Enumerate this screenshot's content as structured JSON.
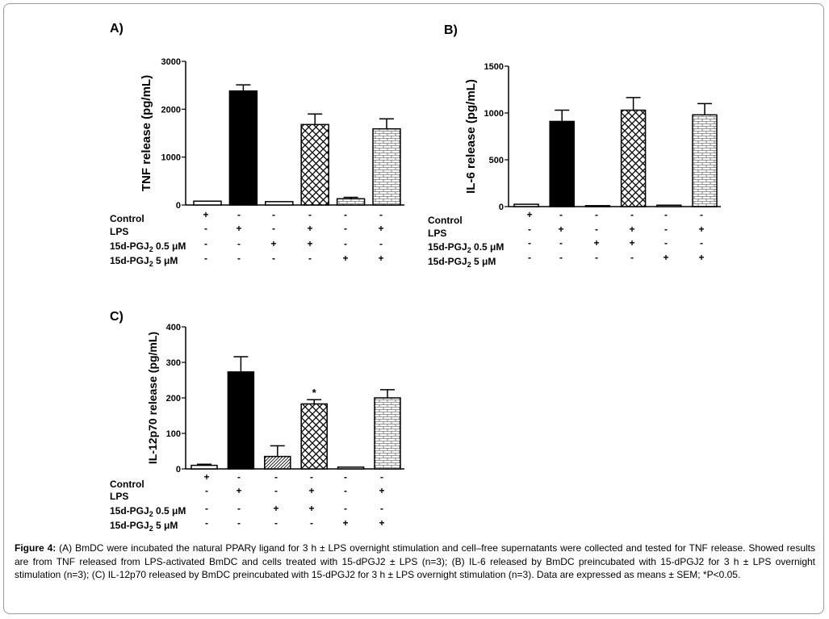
{
  "chart_data": [
    {
      "type": "bar",
      "panel_label": "A)",
      "ylabel": "TNF release (pg/mL)",
      "ylim": [
        0,
        3000
      ],
      "yticks": [
        0,
        1000,
        2000,
        3000
      ],
      "categories": [
        "1",
        "2",
        "3",
        "4",
        "5",
        "6"
      ],
      "values": [
        80,
        2380,
        70,
        1680,
        130,
        1590
      ],
      "errors": [
        0,
        130,
        0,
        220,
        30,
        210
      ],
      "fills": [
        "white",
        "solid",
        "white",
        "crosshatch",
        "brick",
        "brick"
      ],
      "significance": [
        "",
        "",
        "",
        "",
        "",
        ""
      ],
      "conditions": [
        {
          "label": "Control",
          "signs": [
            "+",
            "-",
            "-",
            "-",
            "-",
            "-"
          ]
        },
        {
          "label": "LPS",
          "signs": [
            "-",
            "+",
            "-",
            "+",
            "-",
            "+"
          ]
        },
        {
          "label": "15d-PGJ",
          "sub": "2",
          "suffix": " 0.5 μM",
          "signs": [
            "-",
            "-",
            "+",
            "+",
            "-",
            "-"
          ]
        },
        {
          "label": "15d-PGJ",
          "sub": "2",
          "suffix": " 5 μM",
          "signs": [
            "-",
            "-",
            "-",
            "-",
            "+",
            "+"
          ]
        }
      ]
    },
    {
      "type": "bar",
      "panel_label": "B)",
      "ylabel": "IL-6 release (pg/mL)",
      "ylim": [
        0,
        1500
      ],
      "yticks": [
        0,
        500,
        1000,
        1500
      ],
      "categories": [
        "1",
        "2",
        "3",
        "4",
        "5",
        "6"
      ],
      "values": [
        25,
        910,
        10,
        1030,
        15,
        980
      ],
      "errors": [
        0,
        120,
        0,
        135,
        0,
        120
      ],
      "fills": [
        "white",
        "solid",
        "white",
        "crosshatch",
        "white",
        "brick"
      ],
      "significance": [
        "",
        "",
        "",
        "",
        "",
        ""
      ],
      "conditions": [
        {
          "label": "Control",
          "signs": [
            "+",
            "-",
            "-",
            "-",
            "-",
            "-"
          ]
        },
        {
          "label": "LPS",
          "signs": [
            "-",
            "+",
            "-",
            "+",
            "-",
            "+"
          ]
        },
        {
          "label": "15d-PGJ",
          "sub": "2",
          "suffix": " 0.5 μM",
          "signs": [
            "-",
            "-",
            "+",
            "+",
            "-",
            "-"
          ]
        },
        {
          "label": "15d-PGJ",
          "sub": "2",
          "suffix": " 5 μM",
          "signs": [
            "-",
            "-",
            "-",
            "-",
            "+",
            "+"
          ]
        }
      ]
    },
    {
      "type": "bar",
      "panel_label": "C)",
      "ylabel": "IL-12p70 release (pg/mL)",
      "ylim": [
        0,
        400
      ],
      "yticks": [
        0,
        100,
        200,
        300,
        400
      ],
      "categories": [
        "1",
        "2",
        "3",
        "4",
        "5",
        "6"
      ],
      "values": [
        10,
        273,
        35,
        183,
        5,
        200
      ],
      "errors": [
        3,
        43,
        30,
        12,
        0,
        23
      ],
      "fills": [
        "white",
        "solid",
        "hatch",
        "crosshatch",
        "white",
        "brick"
      ],
      "significance": [
        "",
        "",
        "",
        "*",
        "",
        ""
      ],
      "conditions": [
        {
          "label": "Control",
          "signs": [
            "+",
            "-",
            "-",
            "-",
            "-",
            "-"
          ]
        },
        {
          "label": "LPS",
          "signs": [
            "-",
            "+",
            "-",
            "+",
            "-",
            "+"
          ]
        },
        {
          "label": "15d-PGJ",
          "sub": "2",
          "suffix": " 0.5 μM",
          "signs": [
            "-",
            "-",
            "+",
            "+",
            "-",
            "-"
          ]
        },
        {
          "label": "15d-PGJ",
          "sub": "2",
          "suffix": " 5 μM",
          "signs": [
            "-",
            "-",
            "-",
            "-",
            "+",
            "+"
          ]
        }
      ]
    }
  ],
  "caption": {
    "label": "Figure 4:",
    "text": "(A) BmDC were incubated the natural PPARγ ligand for 3 h ± LPS overnight stimulation and cell–free supernatants were collected and tested for TNF release. Showed results are from TNF released from LPS-activated BmDC and cells treated with 15-dPGJ2 ± LPS (n=3); (B) IL-6 released by BmDC preincubated with 15-dPGJ2 for 3 h ± LPS overnight stimulation (n=3); (C) IL-12p70 released by BmDC preincubated with 15-dPGJ2 for 3 h ± LPS overnight stimulation (n=3). Data are expressed as means ± SEM; *P<0.05."
  }
}
